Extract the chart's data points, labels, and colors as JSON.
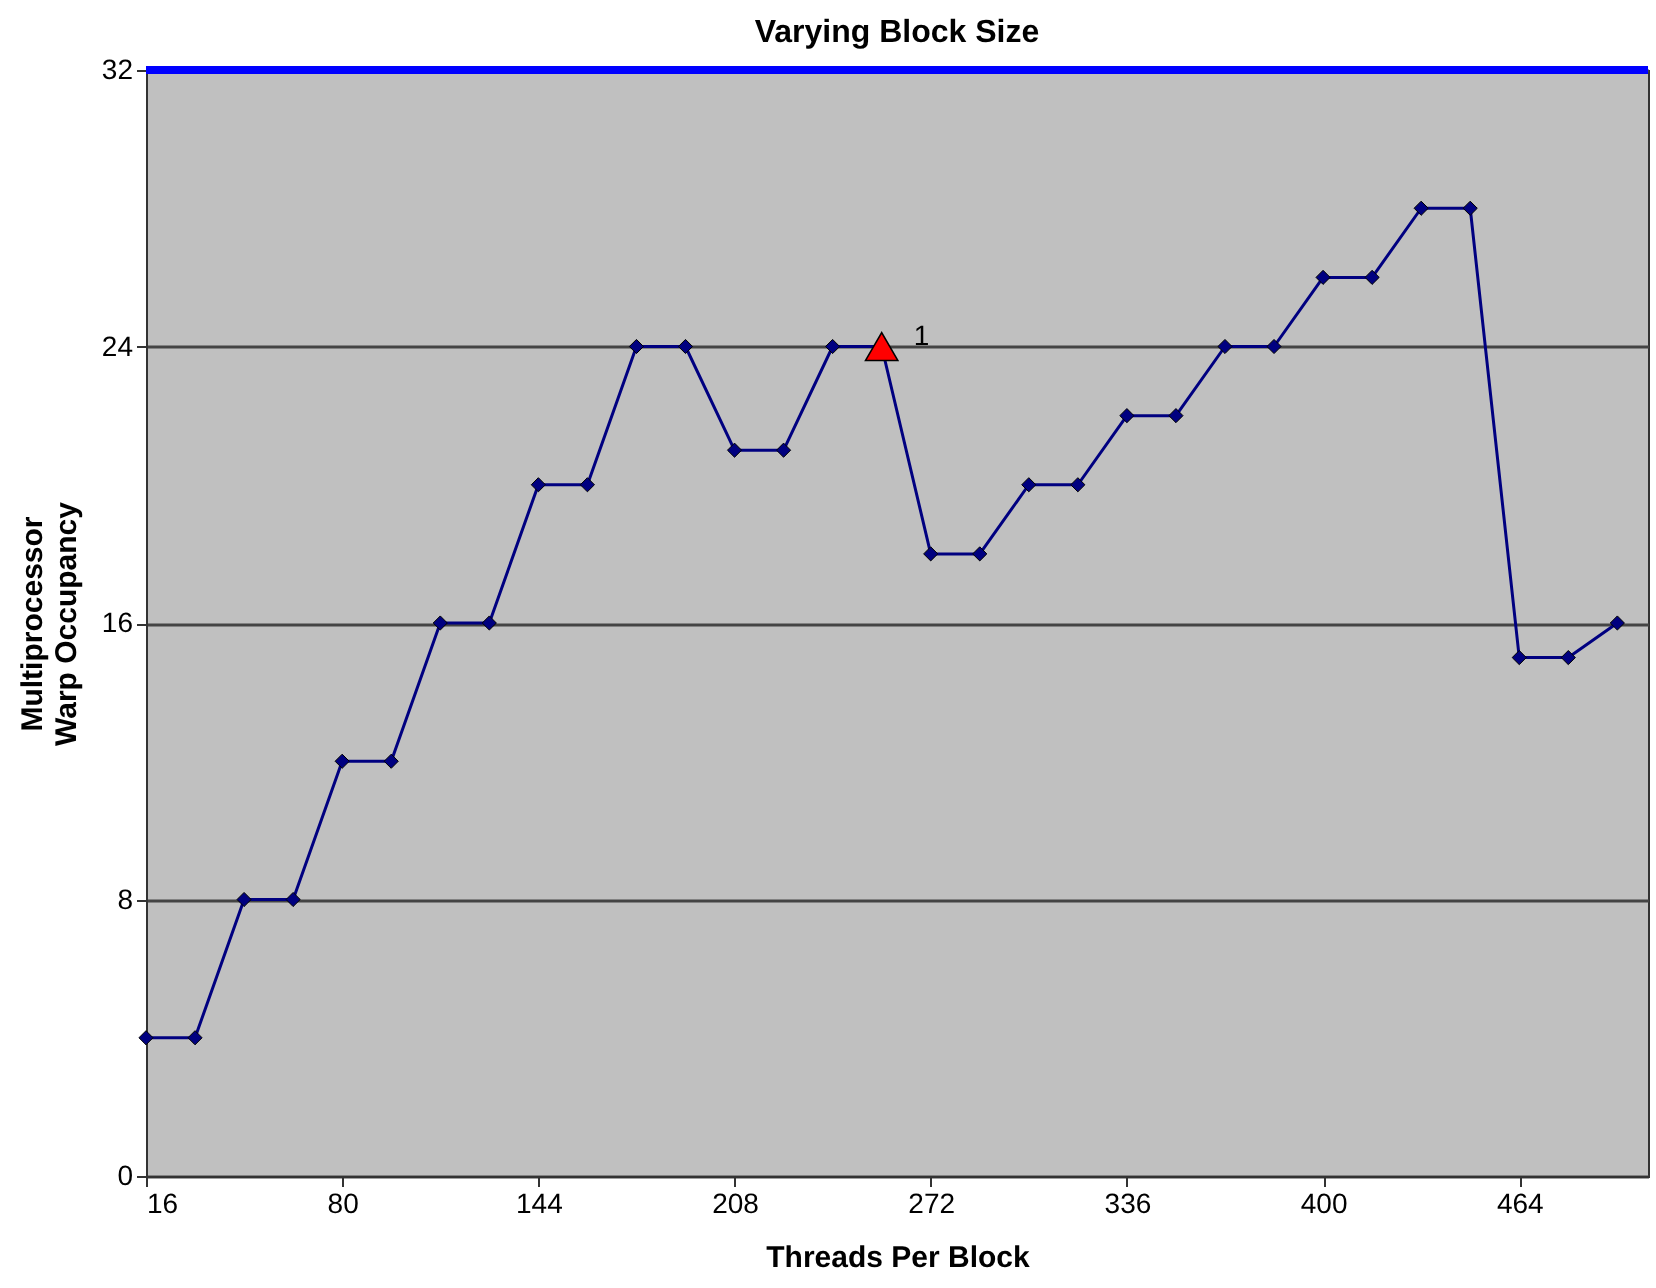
{
  "chart_data": {
    "type": "line",
    "title": "Varying Block Size",
    "xlabel": "Threads Per Block",
    "ylabel": "Multiprocessor\nWarp Occupancy",
    "x": [
      16,
      32,
      48,
      64,
      80,
      96,
      112,
      128,
      144,
      160,
      176,
      192,
      208,
      224,
      240,
      256,
      272,
      288,
      304,
      320,
      336,
      352,
      368,
      384,
      400,
      416,
      432,
      448,
      464,
      480,
      496
    ],
    "series": [
      {
        "color": "#000080",
        "marker": "diamond",
        "values": [
          4,
          4,
          8,
          8,
          12,
          12,
          16,
          16,
          20,
          20,
          24,
          24,
          21,
          21,
          24,
          24,
          18,
          18,
          20,
          20,
          22,
          22,
          24,
          24,
          26,
          26,
          28,
          28,
          15,
          15,
          16
        ]
      },
      {
        "type": "scatter",
        "color": "#ff0000",
        "marker": "triangle",
        "x": [
          256
        ],
        "values": [
          24
        ]
      }
    ],
    "annotations": [
      {
        "text": "1",
        "x": 256,
        "y": 24
      }
    ],
    "ref_lines": [
      {
        "axis": "y",
        "value": 32,
        "color": "#0000ff"
      }
    ],
    "xlim": [
      16,
      506
    ],
    "xticks": [
      16,
      80,
      144,
      208,
      272,
      336,
      400,
      464
    ],
    "ylim": [
      0,
      32
    ],
    "yticks": [
      0,
      8,
      16,
      24,
      32
    ],
    "grid": "y"
  }
}
